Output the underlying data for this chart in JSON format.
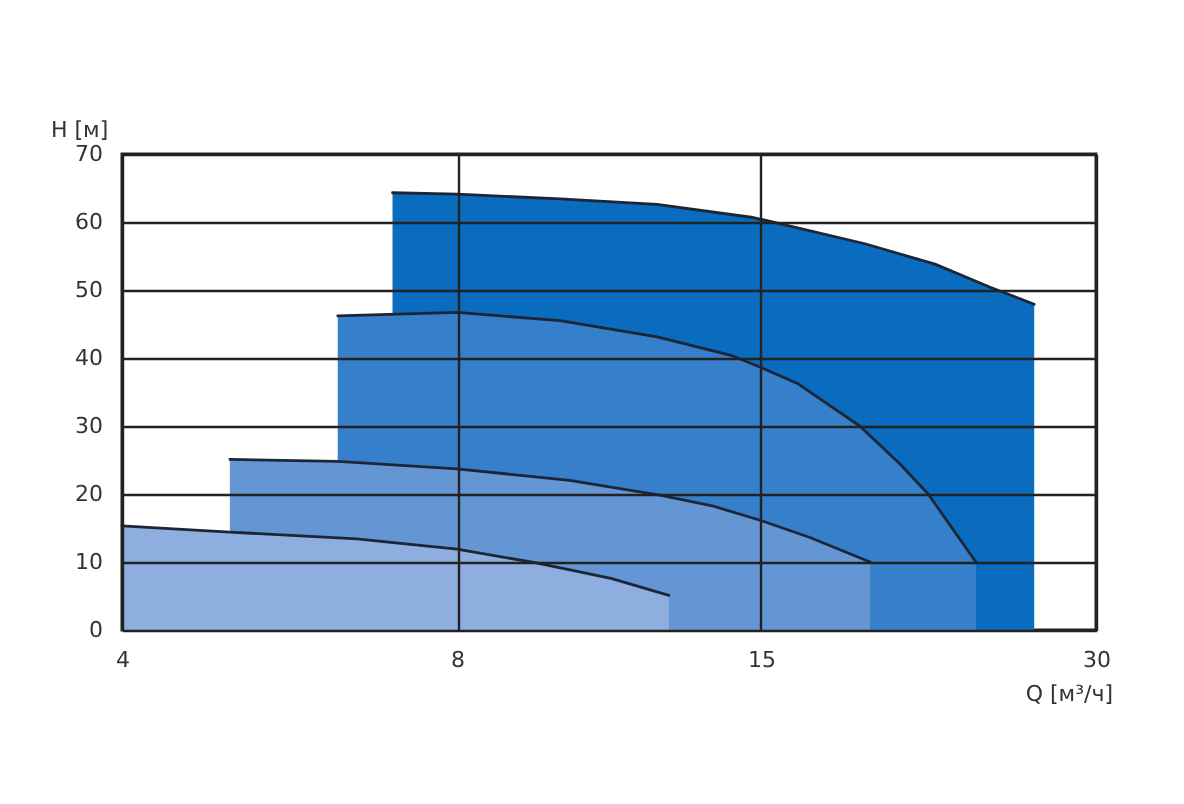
{
  "chart_data": {
    "type": "area",
    "xlabel": "Q [м³/ч]",
    "ylabel": "H [м]",
    "log": "x",
    "xlim": [
      4,
      30
    ],
    "xticks": [
      4,
      8,
      15,
      30
    ],
    "ylim": [
      0,
      70
    ],
    "yticks": [
      0,
      10,
      20,
      30,
      40,
      50,
      60,
      70
    ],
    "grid": true,
    "line_style": "solid",
    "series": [
      {
        "color": "#0a6cbf",
        "x": [
          7.0,
          8,
          9.9,
          12.1,
          14.7,
          15,
          18.6,
          21.5,
          24.1,
          26.4
        ],
        "values": [
          64.3,
          64.1,
          63.4,
          62.6,
          60.7,
          60.4,
          56.8,
          53.8,
          50.4,
          47.9
        ]
      },
      {
        "color": "#3680cb",
        "x": [
          6.25,
          8,
          9.9,
          12.1,
          14.1,
          15,
          16.2,
          18.4,
          20.0,
          21.2,
          23.4
        ],
        "values": [
          46.2,
          46.7,
          45.5,
          43.1,
          40.4,
          38.6,
          36.2,
          30.0,
          24.4,
          20.0,
          10.0
        ]
      },
      {
        "color": "#6596d4",
        "x": [
          5.0,
          6.25,
          8,
          10.1,
          12.2,
          13.6,
          15,
          16.6,
          18.8
        ],
        "values": [
          25.1,
          24.8,
          23.7,
          22.0,
          19.8,
          18.2,
          16.1,
          13.6,
          10.0
        ]
      },
      {
        "color": "#8eaedf",
        "x": [
          4,
          5.0,
          6.5,
          8,
          9.4,
          11.0,
          12.4
        ],
        "values": [
          15.3,
          14.4,
          13.4,
          11.9,
          9.9,
          7.6,
          5.1
        ]
      }
    ]
  }
}
